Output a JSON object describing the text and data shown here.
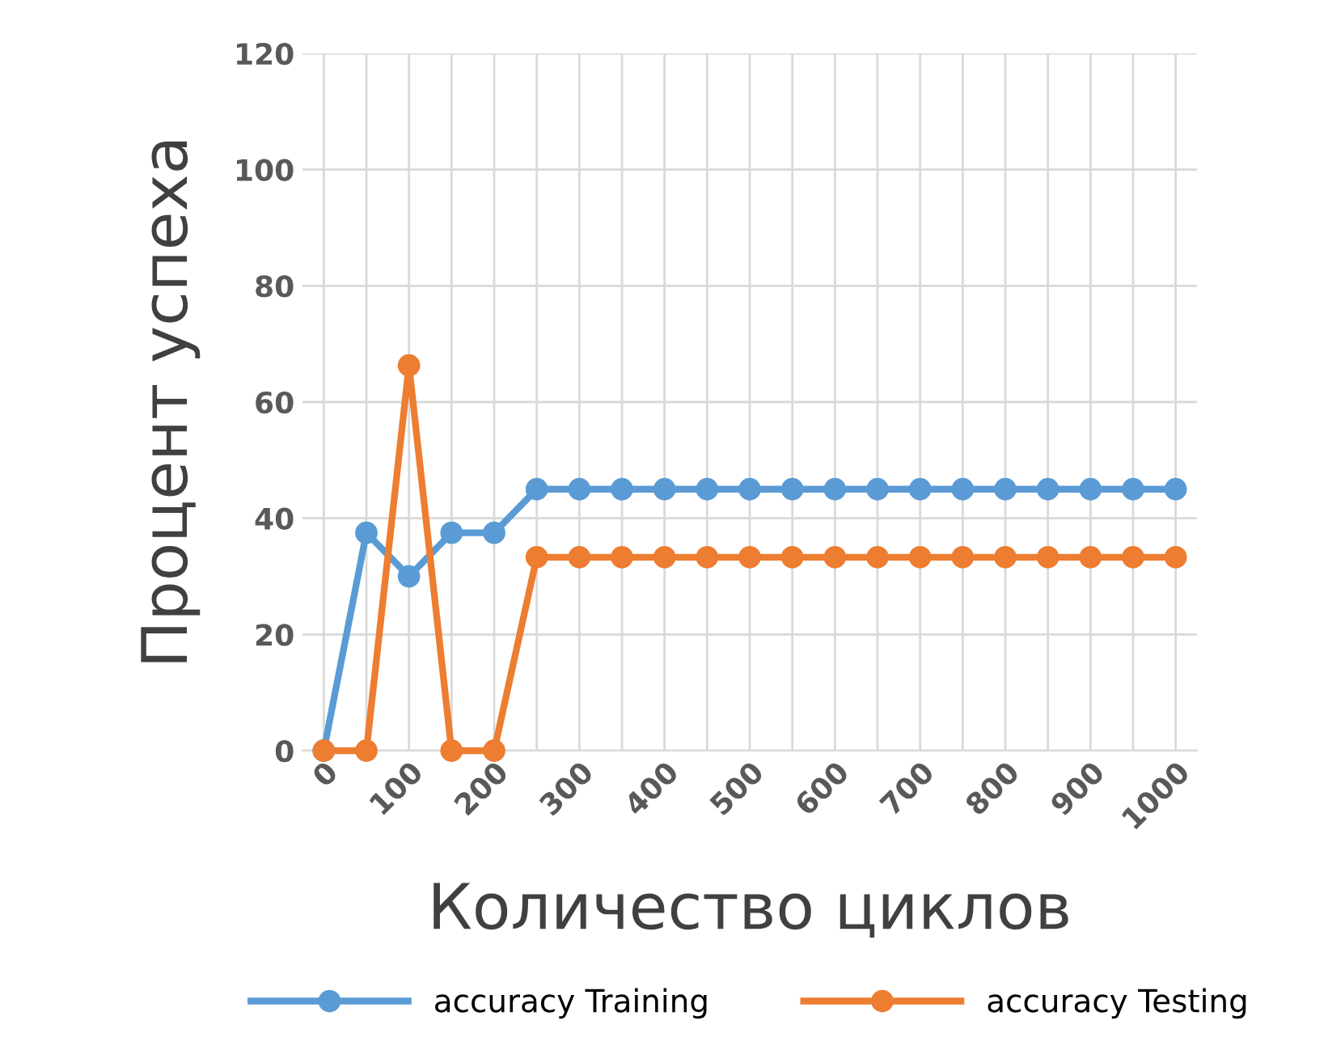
{
  "chart_data": {
    "type": "line",
    "xlabel": "Количество циклов",
    "ylabel": "Процент успеха",
    "categories": [
      "0",
      null,
      "100",
      null,
      "200",
      null,
      "300",
      null,
      "400",
      null,
      "500",
      null,
      "600",
      null,
      "700",
      null,
      "800",
      null,
      "900",
      null,
      "1000"
    ],
    "series": [
      {
        "name": "accuracy Training",
        "color": "#5b9bd5",
        "values": [
          0,
          37.5,
          30,
          37.5,
          37.5,
          45,
          45,
          45,
          45,
          45,
          45,
          45,
          45,
          45,
          45,
          45,
          45,
          45,
          45,
          45,
          45
        ]
      },
      {
        "name": "accuracy Testing",
        "color": "#ed7d31",
        "values": [
          0,
          0,
          66.3,
          0,
          0,
          33.3,
          33.3,
          33.3,
          33.3,
          33.3,
          33.3,
          33.3,
          33.3,
          33.3,
          33.3,
          33.3,
          33.3,
          33.3,
          33.3,
          33.3,
          33.3
        ]
      }
    ],
    "ylim": [
      0,
      120
    ],
    "yticks": [
      0,
      20,
      40,
      60,
      80,
      100,
      120
    ],
    "grid": true,
    "legend": "bottom",
    "marker": "circle",
    "line_style": "solid"
  }
}
